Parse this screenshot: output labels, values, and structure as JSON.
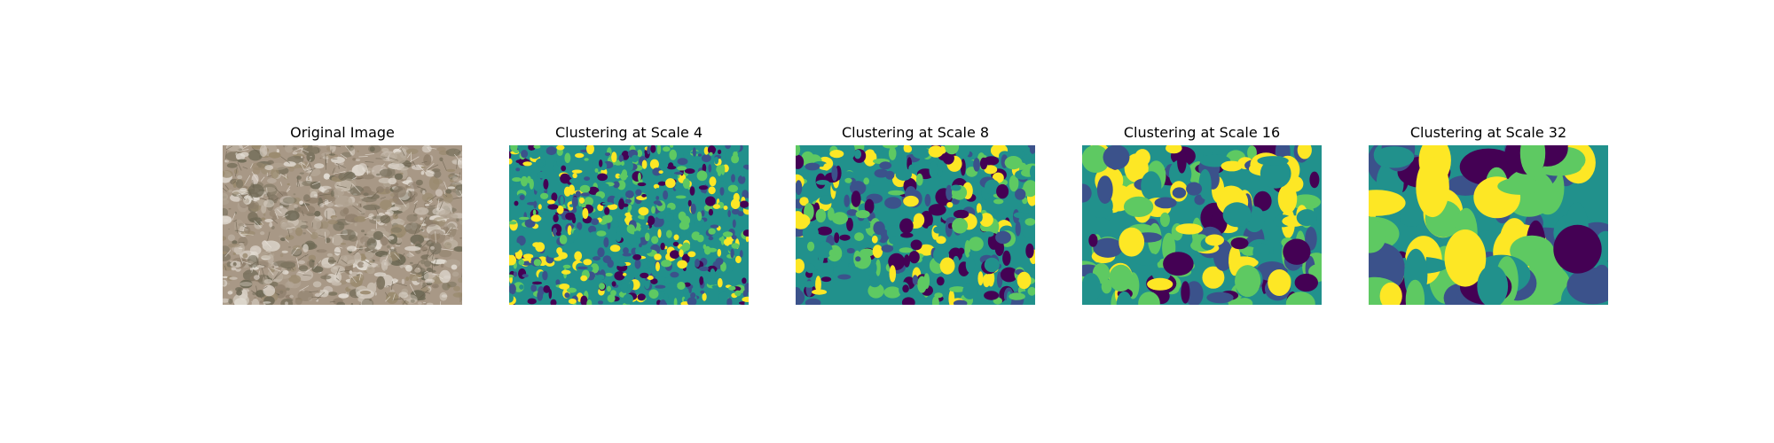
{
  "figure": {
    "panels": [
      {
        "title": "Original Image",
        "kind": "photo"
      },
      {
        "title": "Clustering at Scale 4",
        "kind": "cluster",
        "scale": 4
      },
      {
        "title": "Clustering at Scale 8",
        "kind": "cluster",
        "scale": 8
      },
      {
        "title": "Clustering at Scale 16",
        "kind": "cluster",
        "scale": 16
      },
      {
        "title": "Clustering at Scale 32",
        "kind": "cluster",
        "scale": 32
      }
    ],
    "colormap": {
      "name": "viridis",
      "classes": [
        "#440154",
        "#3b528b",
        "#21918c",
        "#5ec962",
        "#fde725"
      ]
    }
  }
}
